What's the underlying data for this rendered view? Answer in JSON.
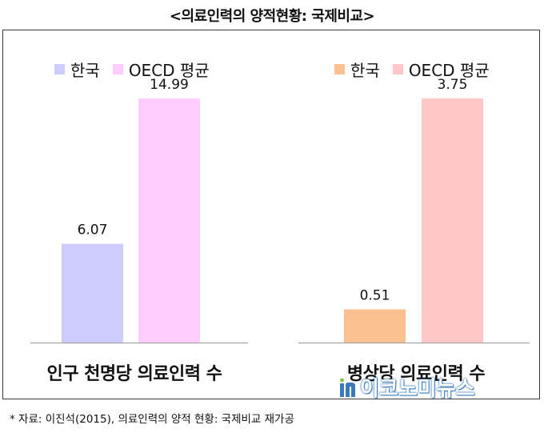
{
  "title": "<의료인력의 양적현황: 국제비교>",
  "colors": {
    "korea_left": "#ccccff",
    "oecd_left": "#ffccff",
    "korea_right": "#fac090",
    "oecd_right": "#ffc7c7",
    "axis": "#999999",
    "frame": "#3a3a3a"
  },
  "chart_data": [
    {
      "type": "bar",
      "xlabel": "인구 천명당 의료인력 수",
      "categories": [
        "한국",
        "OECD 평균"
      ],
      "values": [
        6.07,
        14.99
      ],
      "value_labels": [
        "6.07",
        "14.99"
      ],
      "legend": [
        "한국",
        "OECD 평균"
      ],
      "legend_position": "top-left",
      "ylim": [
        0,
        17.6
      ],
      "grid": false
    },
    {
      "type": "bar",
      "xlabel": "병상당 의료인력 수",
      "categories": [
        "한국",
        "OECD 평균"
      ],
      "values": [
        0.51,
        3.75
      ],
      "value_labels": [
        "0.51",
        "3.75"
      ],
      "legend": [
        "한국",
        "OECD 평균"
      ],
      "legend_position": "top-right",
      "ylim": [
        0,
        4.4
      ],
      "grid": false
    }
  ],
  "source": "* 자료: 이진석(2015), 의료인력의 양적 현황: 국제비교 재가공",
  "watermark": "이코노미뉴스"
}
